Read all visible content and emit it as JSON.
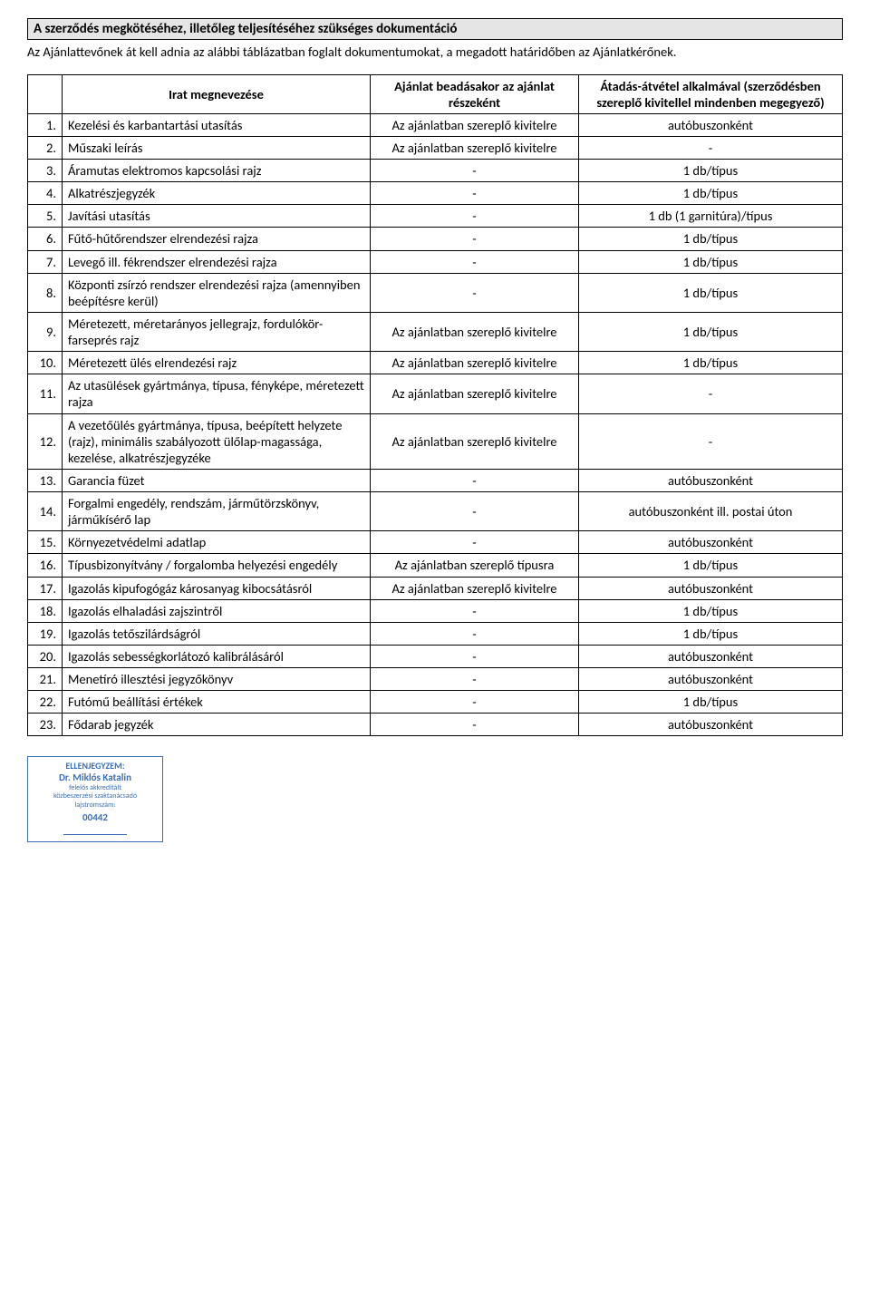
{
  "title": "A szerződés megkötéséhez, illetőleg teljesítéséhez szükséges dokumentáció",
  "intro": "Az Ajánlattevőnek át kell adnia az alábbi táblázatban foglalt dokumentumokat, a megadott határidőben az Ajánlatkérőnek.",
  "headers": {
    "col1": "",
    "col2": "Irat megnevezése",
    "col3": "Ajánlat beadásakor az ajánlat részeként",
    "col4": "Átadás-átvétel alkalmával (szerződésben szereplő kivitellel mindenben megegyező)"
  },
  "rows": [
    {
      "n": "1.",
      "desc": "Kezelési és karbantartási utasítás",
      "mid": "Az ajánlatban szereplő kivitelre",
      "right": "autóbuszonként"
    },
    {
      "n": "2.",
      "desc": "Műszaki leírás",
      "mid": "Az ajánlatban szereplő kivitelre",
      "right": "-"
    },
    {
      "n": "3.",
      "desc": "Áramutas elektromos kapcsolási rajz",
      "mid": "-",
      "right": "1 db/típus"
    },
    {
      "n": "4.",
      "desc": "Alkatrészjegyzék",
      "mid": "-",
      "right": "1 db/típus"
    },
    {
      "n": "5.",
      "desc": "Javítási utasítás",
      "mid": "-",
      "right": "1 db (1 garnitúra)/típus"
    },
    {
      "n": "6.",
      "desc": "Fűtő-hűtőrendszer elrendezési rajza",
      "mid": "-",
      "right": "1 db/típus"
    },
    {
      "n": "7.",
      "desc": "Levegő ill. fékrendszer elrendezési rajza",
      "mid": "-",
      "right": "1 db/típus"
    },
    {
      "n": "8.",
      "desc": "Központi zsírzó rendszer elrendezési rajza (amennyiben beépítésre kerül)",
      "mid": "-",
      "right": "1 db/típus"
    },
    {
      "n": "9.",
      "desc": "Méretezett, méretarányos jellegrajz, fordulókör-farseprés rajz",
      "mid": "Az ajánlatban szereplő kivitelre",
      "right": "1 db/típus"
    },
    {
      "n": "10.",
      "desc": "Méretezett ülés elrendezési rajz",
      "mid": "Az ajánlatban szereplő kivitelre",
      "right": "1 db/típus"
    },
    {
      "n": "11.",
      "desc": "Az utasülések gyártmánya, típusa, fényképe, méretezett rajza",
      "mid": "Az ajánlatban szereplő kivitelre",
      "right": "-"
    },
    {
      "n": "12.",
      "desc": "A vezetőülés gyártmánya, típusa, beépített helyzete (rajz), minimális szabályozott ülőlap-magassága, kezelése, alkatrészjegyzéke",
      "mid": "Az ajánlatban szereplő kivitelre",
      "right": "-"
    },
    {
      "n": "13.",
      "desc": "Garancia füzet",
      "mid": "-",
      "right": "autóbuszonként"
    },
    {
      "n": "14.",
      "desc": "Forgalmi engedély, rendszám, járműtörzskönyv, járműkísérő lap",
      "mid": "-",
      "right": "autóbuszonként ill. postai úton"
    },
    {
      "n": "15.",
      "desc": "Környezetvédelmi adatlap",
      "mid": "-",
      "right": "autóbuszonként"
    },
    {
      "n": "16.",
      "desc": "Típusbizonyítvány / forgalomba helyezési engedély",
      "mid": "Az ajánlatban szereplő típusra",
      "right": "1 db/típus"
    },
    {
      "n": "17.",
      "desc": "Igazolás kipufogógáz károsanyag kibocsátásról",
      "mid": "Az ajánlatban szereplő kivitelre",
      "right": "autóbuszonként"
    },
    {
      "n": "18.",
      "desc": "Igazolás elhaladási zajszintről",
      "mid": "-",
      "right": "1 db/típus"
    },
    {
      "n": "19.",
      "desc": "Igazolás tetőszilárdságról",
      "mid": "-",
      "right": "1 db/típus"
    },
    {
      "n": "20.",
      "desc": "Igazolás sebességkorlátozó kalibrálásáról",
      "mid": "-",
      "right": "autóbuszonként"
    },
    {
      "n": "21.",
      "desc": "Menetíró illesztési jegyzőkönyv",
      "mid": "-",
      "right": "autóbuszonként"
    },
    {
      "n": "22.",
      "desc": "Futómű beállítási értékek",
      "mid": "-",
      "right": "1 db/típus"
    },
    {
      "n": "23.",
      "desc": "Fődarab jegyzék",
      "mid": "-",
      "right": "autóbuszonként"
    }
  ],
  "stamp": {
    "line1": "ELLENJEGYZEM:",
    "line2": "Dr. Miklós Katalin",
    "line3": "felelős akkreditált",
    "line4": "közbeszerzési szaktanácsadó",
    "line5": "lajstromszám:",
    "num": "00442"
  }
}
